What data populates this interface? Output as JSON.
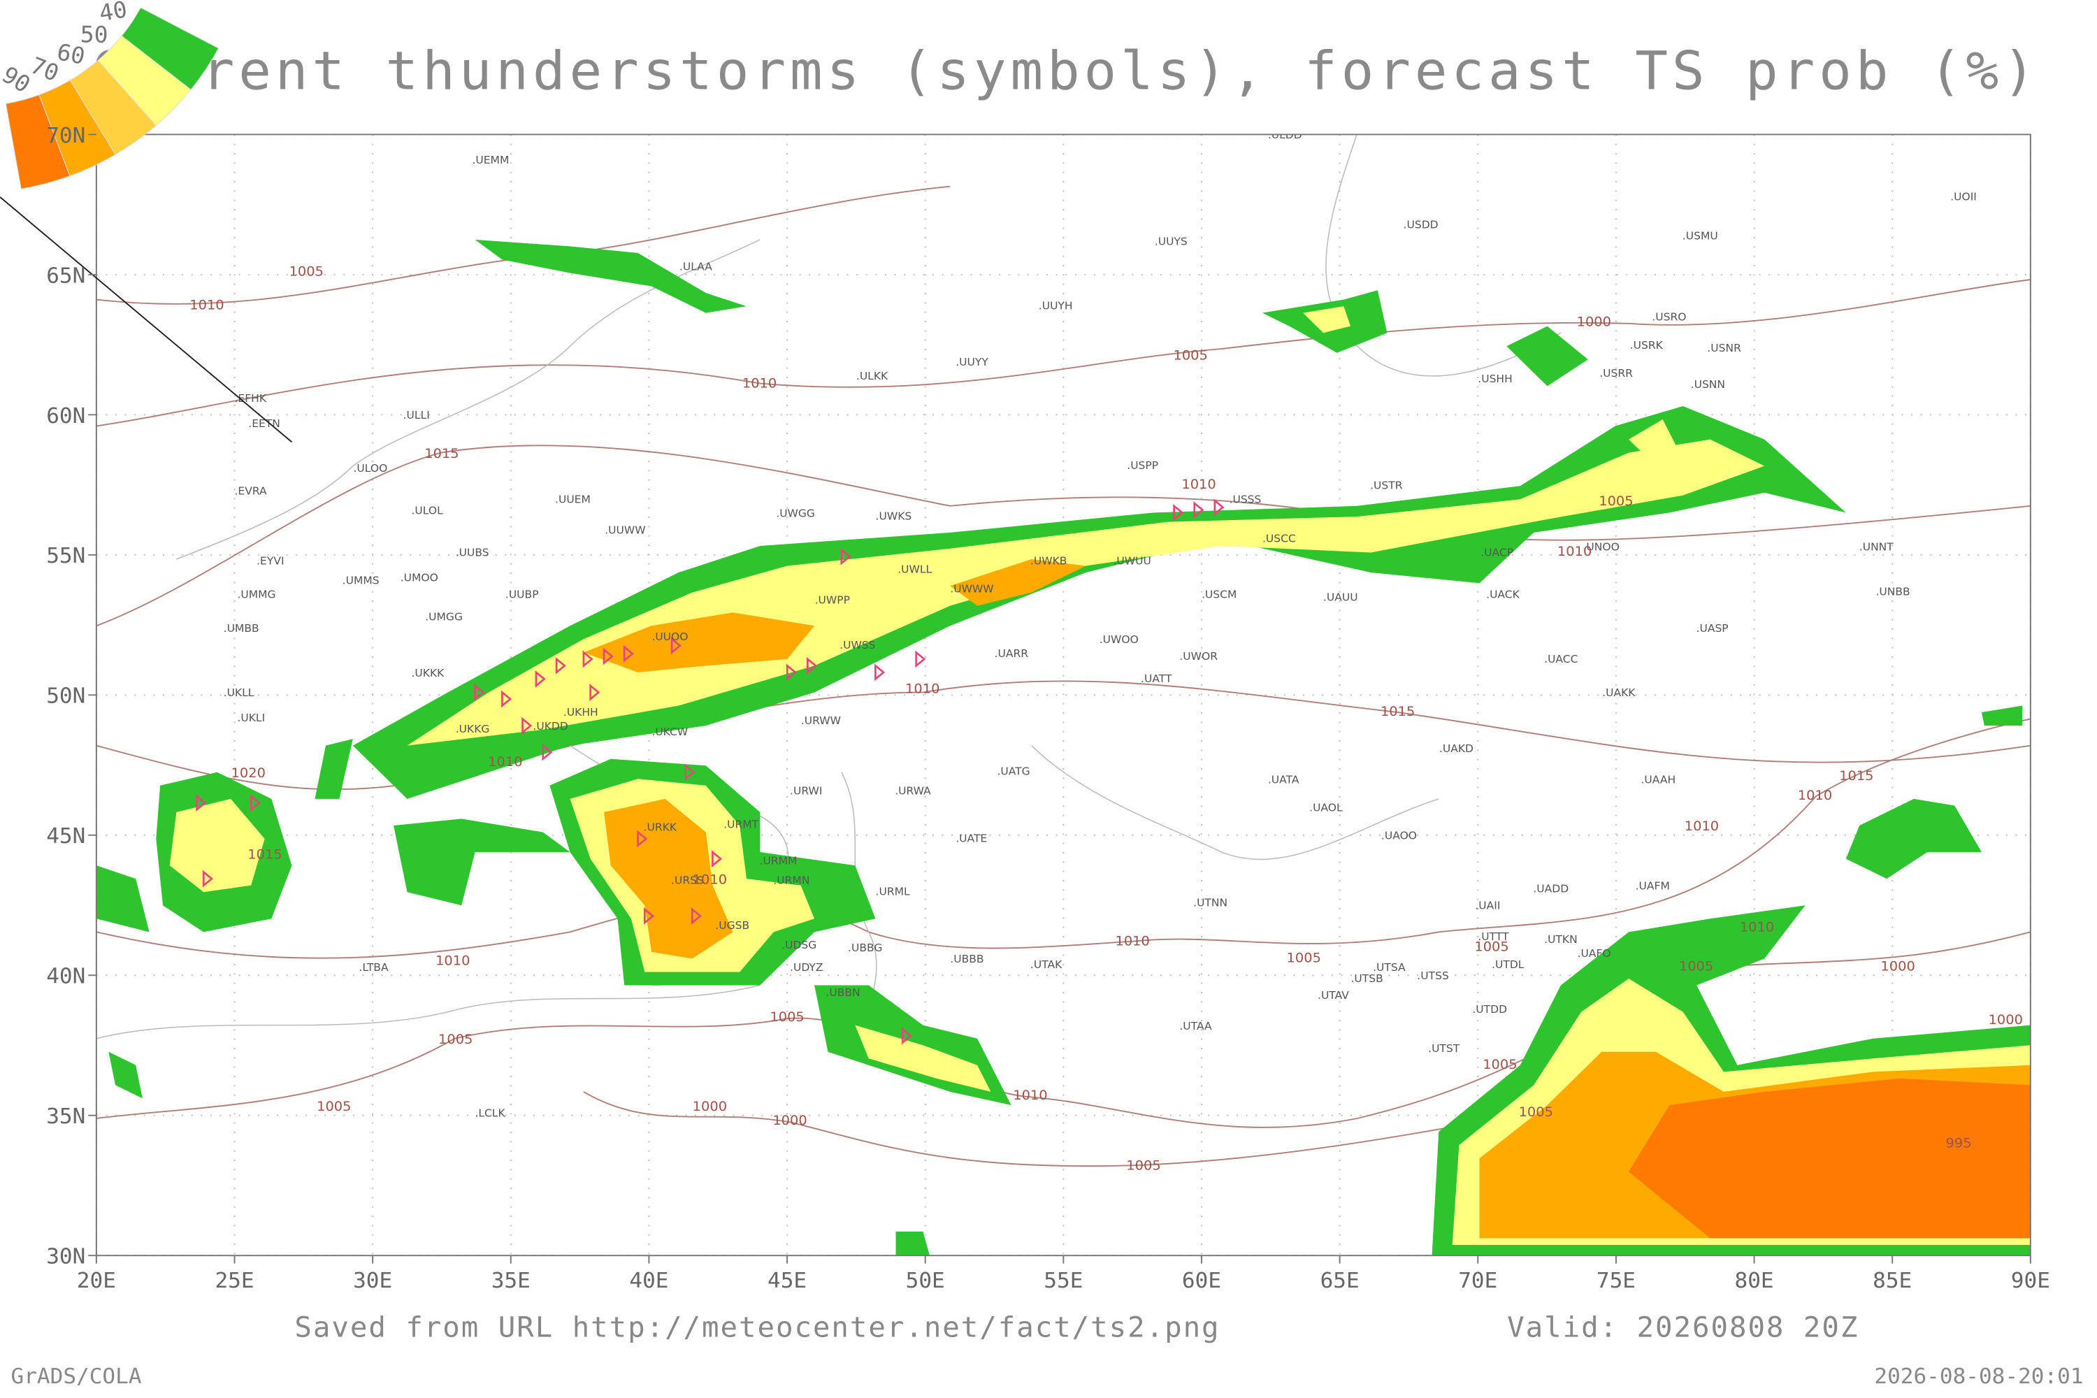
{
  "chart_data": {
    "type": "map",
    "title": "Current thunderstorms (symbols), forecast TS prob (%)",
    "footer_url": "Saved from URL http://meteocenter.net/fact/ts2.png",
    "valid": "Valid: 20260808 20Z",
    "credit": "GrADS/COLA",
    "timestamp": "2026-08-08-20:01",
    "xlim": [
      20,
      90
    ],
    "ylim": [
      30,
      70
    ],
    "grid": true,
    "xticks": [
      {
        "value": 20,
        "label": "20E"
      },
      {
        "value": 25,
        "label": "25E"
      },
      {
        "value": 30,
        "label": "30E"
      },
      {
        "value": 35,
        "label": "35E"
      },
      {
        "value": 40,
        "label": "40E"
      },
      {
        "value": 45,
        "label": "45E"
      },
      {
        "value": 50,
        "label": "50E"
      },
      {
        "value": 55,
        "label": "55E"
      },
      {
        "value": 60,
        "label": "60E"
      },
      {
        "value": 65,
        "label": "65E"
      },
      {
        "value": 70,
        "label": "70E"
      },
      {
        "value": 75,
        "label": "75E"
      },
      {
        "value": 80,
        "label": "80E"
      },
      {
        "value": 85,
        "label": "85E"
      },
      {
        "value": 90,
        "label": "90E"
      }
    ],
    "yticks": [
      {
        "value": 30,
        "label": "30N"
      },
      {
        "value": 35,
        "label": "35N"
      },
      {
        "value": 40,
        "label": "40N"
      },
      {
        "value": 45,
        "label": "45N"
      },
      {
        "value": 50,
        "label": "50N"
      },
      {
        "value": 55,
        "label": "55N"
      },
      {
        "value": 60,
        "label": "60N"
      },
      {
        "value": 65,
        "label": "65N"
      },
      {
        "value": 70,
        "label": "70N"
      }
    ],
    "legend": [
      {
        "value": 90,
        "color": "#ff7a00"
      },
      {
        "value": 70,
        "color": "#ffaa00"
      },
      {
        "value": 60,
        "color": "#ffd040"
      },
      {
        "value": 50,
        "color": "#ffff80"
      },
      {
        "value": 40,
        "color": "#2ec42e"
      }
    ],
    "stations": [
      {
        "label": ".ULDD",
        "lon": 62.4,
        "lat": 70.0
      },
      {
        "label": ".UEMM",
        "lon": 33.6,
        "lat": 69.1
      },
      {
        "label": ".ULAA",
        "lon": 41.1,
        "lat": 65.3
      },
      {
        "label": ".UUYS",
        "lon": 58.3,
        "lat": 66.2
      },
      {
        "label": ".USDD",
        "lon": 67.3,
        "lat": 66.8
      },
      {
        "label": ".USMU",
        "lon": 77.4,
        "lat": 66.4
      },
      {
        "label": ".UOII",
        "lon": 87.1,
        "lat": 67.8
      },
      {
        "label": ".UUYH",
        "lon": 54.1,
        "lat": 63.9
      },
      {
        "label": ".UUYY",
        "lon": 51.1,
        "lat": 61.9
      },
      {
        "label": ".ULKK",
        "lon": 47.5,
        "lat": 61.4
      },
      {
        "label": ".USRO",
        "lon": 76.3,
        "lat": 63.5
      },
      {
        "label": ".USRK",
        "lon": 75.5,
        "lat": 62.5
      },
      {
        "label": ".USNR",
        "lon": 78.3,
        "lat": 62.4
      },
      {
        "label": ".USHH",
        "lon": 70.0,
        "lat": 61.3
      },
      {
        "label": ".USRR",
        "lon": 74.4,
        "lat": 61.5
      },
      {
        "label": ".USNN",
        "lon": 77.7,
        "lat": 61.1
      },
      {
        "label": ".EFHK",
        "lon": 25.0,
        "lat": 60.6
      },
      {
        "label": ".EETN",
        "lon": 25.5,
        "lat": 59.7
      },
      {
        "label": ".ULLI",
        "lon": 31.1,
        "lat": 60.0
      },
      {
        "label": ".USPP",
        "lon": 57.3,
        "lat": 58.2
      },
      {
        "label": ".ULOO",
        "lon": 29.3,
        "lat": 58.1
      },
      {
        "label": ".EVRA",
        "lon": 25.0,
        "lat": 57.3
      },
      {
        "label": ".USSS",
        "lon": 61.0,
        "lat": 57.0
      },
      {
        "label": ".USTR",
        "lon": 66.1,
        "lat": 57.5
      },
      {
        "label": ".ULOL",
        "lon": 31.4,
        "lat": 56.6
      },
      {
        "label": ".UUEM",
        "lon": 36.6,
        "lat": 57.0
      },
      {
        "label": ".UWGG",
        "lon": 44.6,
        "lat": 56.5
      },
      {
        "label": ".UWKS",
        "lon": 48.2,
        "lat": 56.4
      },
      {
        "label": ".UUWW",
        "lon": 38.4,
        "lat": 55.9
      },
      {
        "label": ".USCC",
        "lon": 62.2,
        "lat": 55.6
      },
      {
        "label": ".UNOO",
        "lon": 73.8,
        "lat": 55.3
      },
      {
        "label": ".UNNT",
        "lon": 83.8,
        "lat": 55.3
      },
      {
        "label": ".UUBS",
        "lon": 33.0,
        "lat": 55.1
      },
      {
        "label": ".UACP",
        "lon": 70.1,
        "lat": 55.1
      },
      {
        "label": ".EYVI",
        "lon": 25.8,
        "lat": 54.8
      },
      {
        "label": ".UMMS",
        "lon": 28.9,
        "lat": 54.1
      },
      {
        "label": ".UMOO",
        "lon": 31.0,
        "lat": 54.2
      },
      {
        "label": ".UWKB",
        "lon": 53.8,
        "lat": 54.8
      },
      {
        "label": ".UWUU",
        "lon": 56.8,
        "lat": 54.8
      },
      {
        "label": ".UWLL",
        "lon": 49.0,
        "lat": 54.5
      },
      {
        "label": ".UWWW",
        "lon": 50.9,
        "lat": 53.8
      },
      {
        "label": ".UMMG",
        "lon": 25.1,
        "lat": 53.6
      },
      {
        "label": ".UUBP",
        "lon": 34.8,
        "lat": 53.6
      },
      {
        "label": ".USCM",
        "lon": 60.0,
        "lat": 53.6
      },
      {
        "label": ".UAUU",
        "lon": 64.4,
        "lat": 53.5
      },
      {
        "label": ".UACK",
        "lon": 70.3,
        "lat": 53.6
      },
      {
        "label": ".UNBB",
        "lon": 84.4,
        "lat": 53.7
      },
      {
        "label": ".UMGG",
        "lon": 31.9,
        "lat": 52.8
      },
      {
        "label": ".UWPP",
        "lon": 46.0,
        "lat": 53.4
      },
      {
        "label": ".UMBB",
        "lon": 24.6,
        "lat": 52.4
      },
      {
        "label": ".UUOO",
        "lon": 40.1,
        "lat": 52.1
      },
      {
        "label": ".UASP",
        "lon": 77.9,
        "lat": 52.4
      },
      {
        "label": ".UWSS",
        "lon": 46.9,
        "lat": 51.8
      },
      {
        "label": ".UWOO",
        "lon": 56.3,
        "lat": 52.0
      },
      {
        "label": ".UARR",
        "lon": 52.5,
        "lat": 51.5
      },
      {
        "label": ".UWOR",
        "lon": 59.2,
        "lat": 51.4
      },
      {
        "label": ".UACC",
        "lon": 72.4,
        "lat": 51.3
      },
      {
        "label": ".UKKK",
        "lon": 31.4,
        "lat": 50.8
      },
      {
        "label": ".URWW",
        "lon": 45.5,
        "lat": 49.1
      },
      {
        "label": ".UATT",
        "lon": 57.8,
        "lat": 50.6
      },
      {
        "label": ".UKLL",
        "lon": 24.6,
        "lat": 50.1
      },
      {
        "label": ".UAKK",
        "lon": 74.5,
        "lat": 50.1
      },
      {
        "label": ".UKLI",
        "lon": 25.1,
        "lat": 49.2
      },
      {
        "label": ".UKKG",
        "lon": 33.0,
        "lat": 48.8
      },
      {
        "label": ".UKDD",
        "lon": 35.8,
        "lat": 48.9
      },
      {
        "label": ".UKHH",
        "lon": 36.9,
        "lat": 49.4
      },
      {
        "label": ".UKCW",
        "lon": 40.1,
        "lat": 48.7
      },
      {
        "label": ".UAKD",
        "lon": 68.6,
        "lat": 48.1
      },
      {
        "label": ".UATG",
        "lon": 52.6,
        "lat": 47.3
      },
      {
        "label": ".UATA",
        "lon": 62.4,
        "lat": 47.0
      },
      {
        "label": ".UAAH",
        "lon": 75.9,
        "lat": 47.0
      },
      {
        "label": ".URWI",
        "lon": 45.1,
        "lat": 46.6
      },
      {
        "label": ".URWA",
        "lon": 48.9,
        "lat": 46.6
      },
      {
        "label": ".UAOL",
        "lon": 63.9,
        "lat": 46.0
      },
      {
        "label": ".URKK",
        "lon": 39.8,
        "lat": 45.3
      },
      {
        "label": ".URMT",
        "lon": 42.7,
        "lat": 45.4
      },
      {
        "label": ".UATE",
        "lon": 51.1,
        "lat": 44.9
      },
      {
        "label": ".UAOO",
        "lon": 66.5,
        "lat": 45.0
      },
      {
        "label": ".URMM",
        "lon": 44.0,
        "lat": 44.1
      },
      {
        "label": ".URMN",
        "lon": 44.5,
        "lat": 43.4
      },
      {
        "label": ".URSS",
        "lon": 40.8,
        "lat": 43.4
      },
      {
        "label": ".URML",
        "lon": 48.2,
        "lat": 43.0
      },
      {
        "label": ".UADD",
        "lon": 72.0,
        "lat": 43.1
      },
      {
        "label": ".UAFM",
        "lon": 75.7,
        "lat": 43.2
      },
      {
        "label": ".UTNN",
        "lon": 59.7,
        "lat": 42.6
      },
      {
        "label": ".UAII",
        "lon": 69.9,
        "lat": 42.5
      },
      {
        "label": ".UGSB",
        "lon": 42.4,
        "lat": 41.8
      },
      {
        "label": ".UTTT",
        "lon": 70.0,
        "lat": 41.4
      },
      {
        "label": ".UTKN",
        "lon": 72.4,
        "lat": 41.3
      },
      {
        "label": ".UAFO",
        "lon": 73.6,
        "lat": 40.8
      },
      {
        "label": ".UTDL",
        "lon": 70.5,
        "lat": 40.4
      },
      {
        "label": ".UDSG",
        "lon": 44.8,
        "lat": 41.1
      },
      {
        "label": ".UBBG",
        "lon": 47.2,
        "lat": 41.0
      },
      {
        "label": ".UBBB",
        "lon": 50.9,
        "lat": 40.6
      },
      {
        "label": ".UTAK",
        "lon": 53.8,
        "lat": 40.4
      },
      {
        "label": ".LTBA",
        "lon": 29.5,
        "lat": 40.3
      },
      {
        "label": ".UDYZ",
        "lon": 45.1,
        "lat": 40.3
      },
      {
        "label": ".UTSA",
        "lon": 66.2,
        "lat": 40.3
      },
      {
        "label": ".UTSB",
        "lon": 65.4,
        "lat": 39.9
      },
      {
        "label": ".UTSS",
        "lon": 67.8,
        "lat": 40.0
      },
      {
        "label": ".UTAV",
        "lon": 64.2,
        "lat": 39.3
      },
      {
        "label": ".UTDD",
        "lon": 69.8,
        "lat": 38.8
      },
      {
        "label": ".UBBN",
        "lon": 46.4,
        "lat": 39.4
      },
      {
        "label": ".UTAA",
        "lon": 59.2,
        "lat": 38.2
      },
      {
        "label": ".UTST",
        "lon": 68.2,
        "lat": 37.4
      },
      {
        "label": ".LCLK",
        "lon": 33.7,
        "lat": 35.1
      }
    ],
    "isobar_labels": [
      {
        "value": 1005,
        "lon": 27.6,
        "lat": 65.1
      },
      {
        "value": 1010,
        "lon": 24.0,
        "lat": 63.9
      },
      {
        "value": 1010,
        "lon": 44.0,
        "lat": 61.1
      },
      {
        "value": 1005,
        "lon": 59.6,
        "lat": 62.1
      },
      {
        "value": 1000,
        "lon": 74.2,
        "lat": 63.3
      },
      {
        "value": 1015,
        "lon": 32.5,
        "lat": 58.6
      },
      {
        "value": 1010,
        "lon": 59.9,
        "lat": 57.5
      },
      {
        "value": 1005,
        "lon": 75.0,
        "lat": 56.9
      },
      {
        "value": 1010,
        "lon": 73.5,
        "lat": 55.1
      },
      {
        "value": 1010,
        "lon": 49.9,
        "lat": 50.2
      },
      {
        "value": 1015,
        "lon": 67.1,
        "lat": 49.4
      },
      {
        "value": 1010,
        "lon": 34.8,
        "lat": 47.6
      },
      {
        "value": 1020,
        "lon": 25.5,
        "lat": 47.2
      },
      {
        "value": 1015,
        "lon": 83.7,
        "lat": 47.1
      },
      {
        "value": 1010,
        "lon": 82.2,
        "lat": 46.4
      },
      {
        "value": 1010,
        "lon": 78.1,
        "lat": 45.3
      },
      {
        "value": 1015,
        "lon": 26.1,
        "lat": 44.3
      },
      {
        "value": 1010,
        "lon": 42.2,
        "lat": 43.4
      },
      {
        "value": 1010,
        "lon": 57.5,
        "lat": 41.2
      },
      {
        "value": 1010,
        "lon": 32.9,
        "lat": 40.5
      },
      {
        "value": 1010,
        "lon": 80.1,
        "lat": 41.7
      },
      {
        "value": 1005,
        "lon": 63.7,
        "lat": 40.6
      },
      {
        "value": 1005,
        "lon": 70.5,
        "lat": 41.0
      },
      {
        "value": 1005,
        "lon": 77.9,
        "lat": 40.3
      },
      {
        "value": 1000,
        "lon": 85.2,
        "lat": 40.3
      },
      {
        "value": 1005,
        "lon": 45.0,
        "lat": 38.5
      },
      {
        "value": 1005,
        "lon": 33.0,
        "lat": 37.7
      },
      {
        "value": 1000,
        "lon": 89.1,
        "lat": 38.4
      },
      {
        "value": 1005,
        "lon": 70.8,
        "lat": 36.8
      },
      {
        "value": 1010,
        "lon": 53.8,
        "lat": 35.7
      },
      {
        "value": 1005,
        "lon": 28.6,
        "lat": 35.3
      },
      {
        "value": 1000,
        "lon": 42.2,
        "lat": 35.3
      },
      {
        "value": 1005,
        "lon": 72.1,
        "lat": 35.1
      },
      {
        "value": 1000,
        "lon": 45.1,
        "lat": 34.8
      },
      {
        "value": 995,
        "lon": 87.4,
        "lat": 34.0
      },
      {
        "value": 1005,
        "lon": 57.9,
        "lat": 33.2
      }
    ]
  }
}
